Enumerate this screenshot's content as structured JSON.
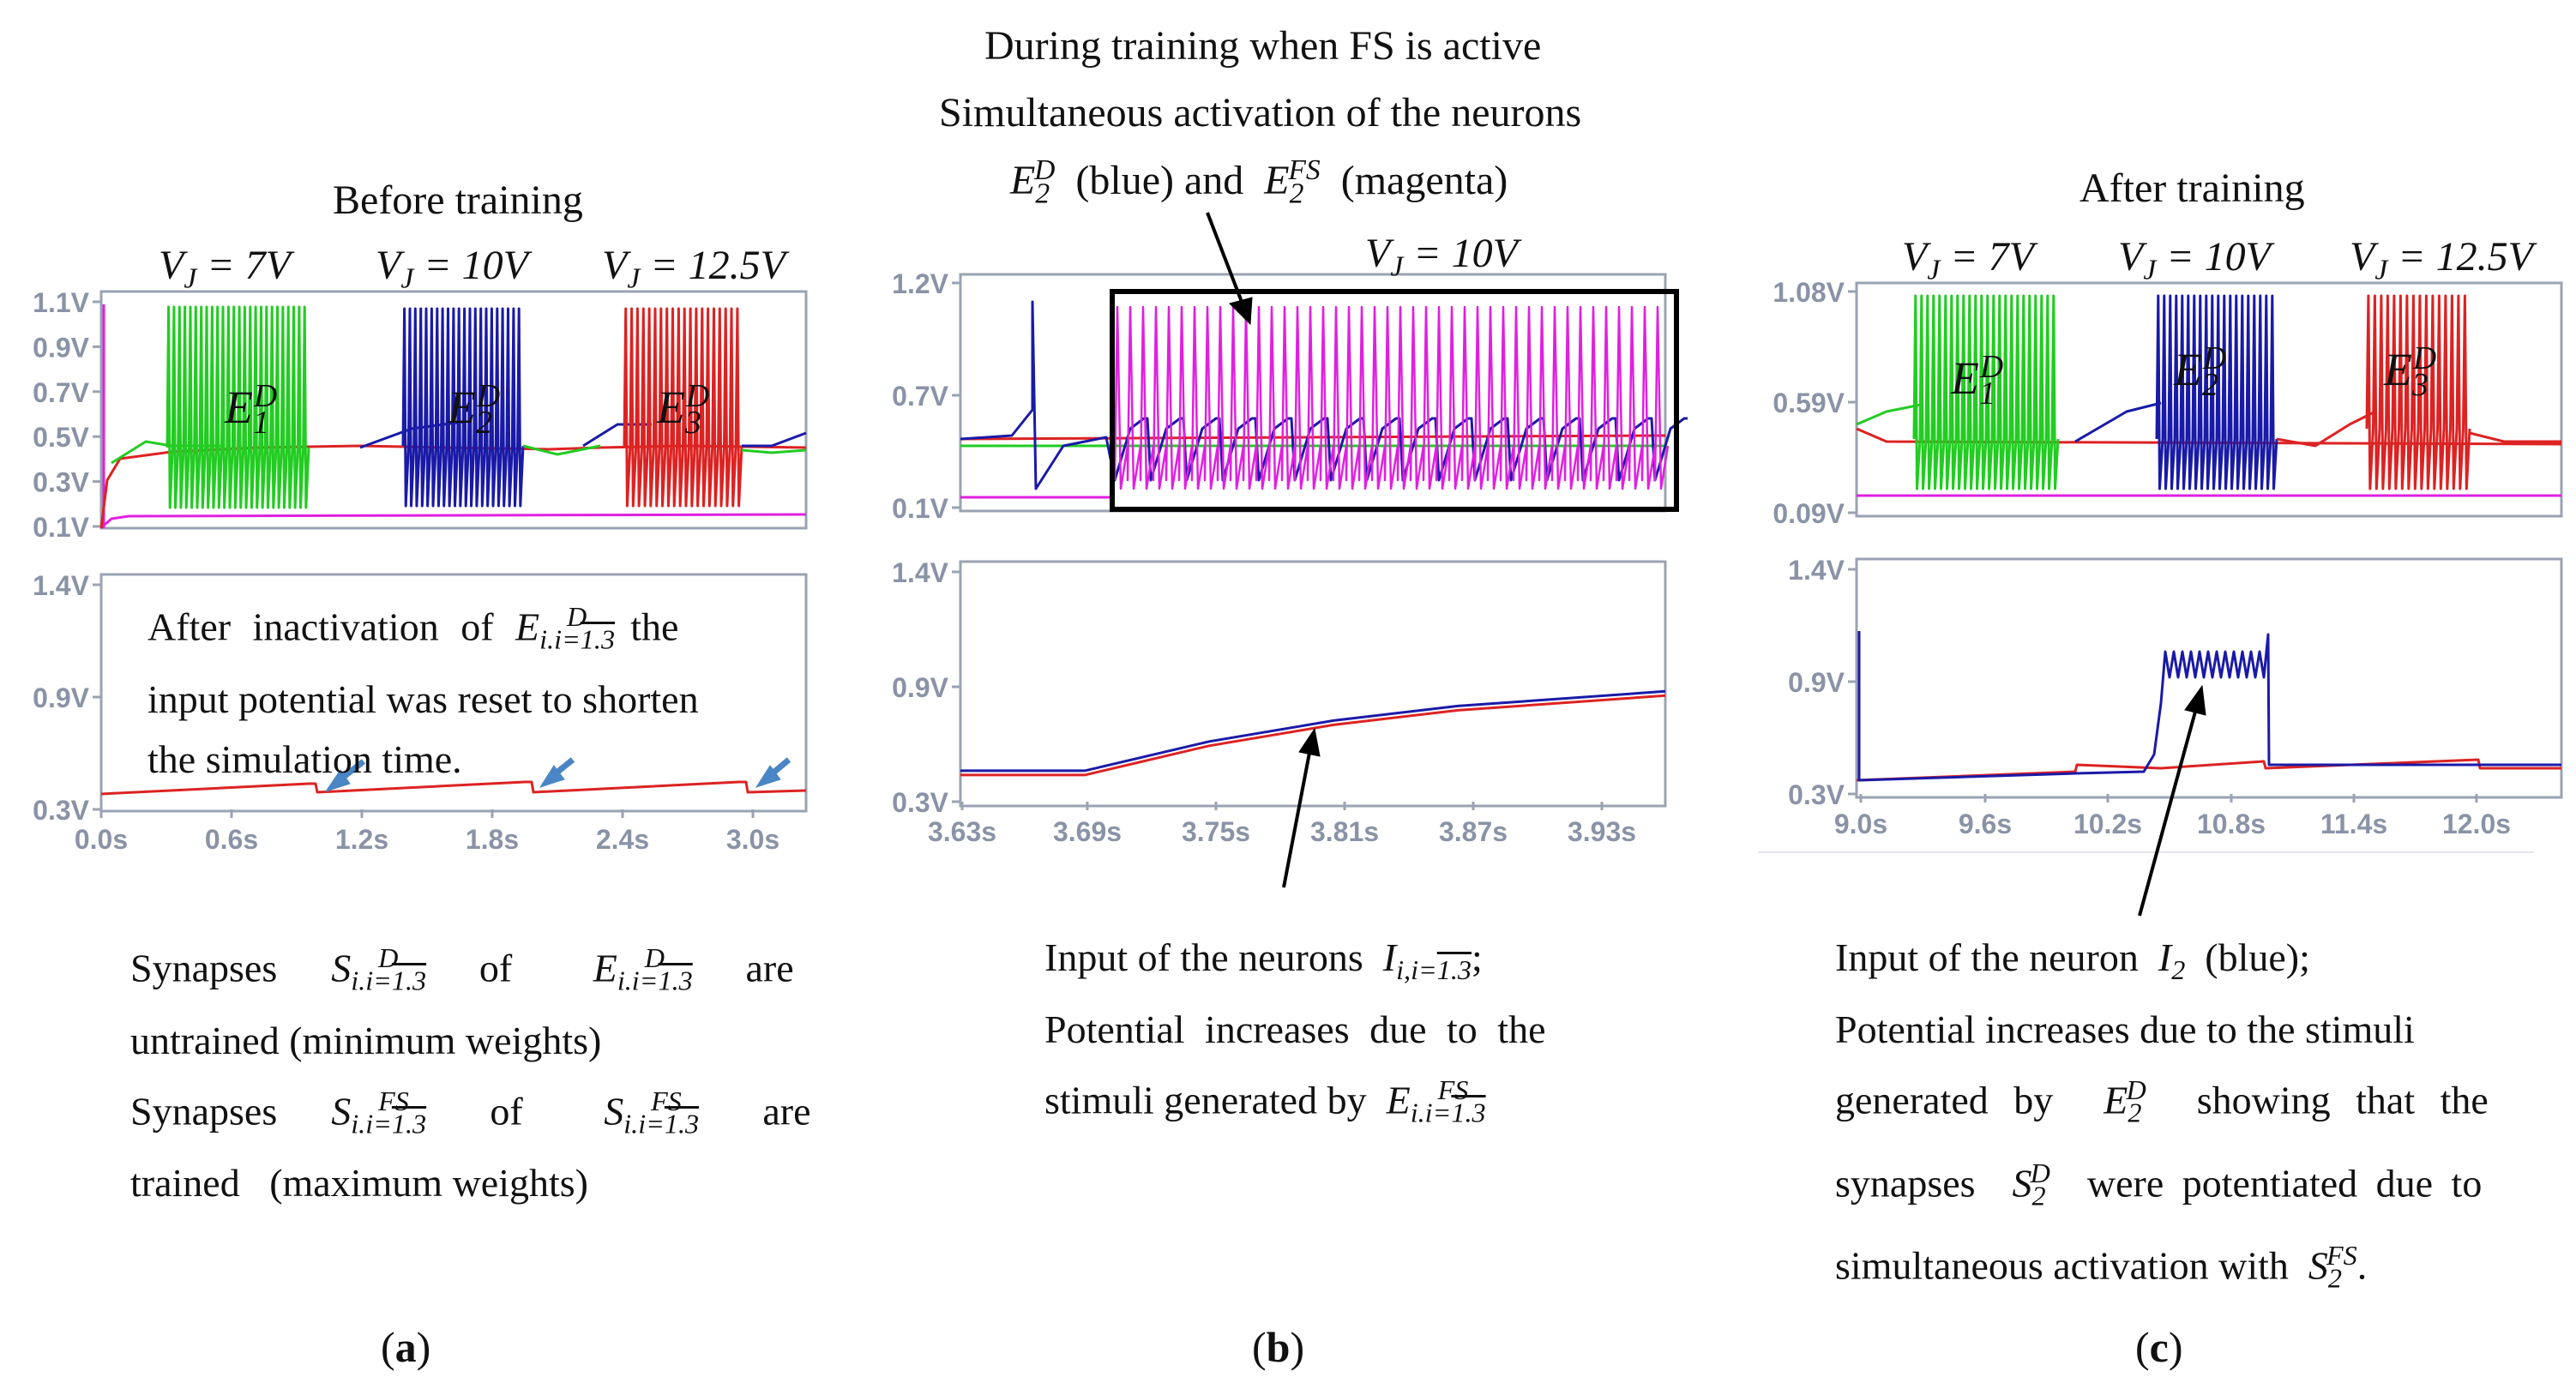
{
  "panels": {
    "a": {
      "label_open": "(",
      "label_letter": "a",
      "label_close": ")",
      "title": "Before training",
      "vj_labels": [
        "V_J = 7V",
        "V_J = 10V",
        "V_J = 12.5V"
      ],
      "neuron_labels": [
        "E_1^D",
        "E_2^D",
        "E_3^D"
      ],
      "annotation_lines": [
        "After inactivation of E^D_{i.i=1.3} the",
        "input potential was reset to shorten",
        "the simulation time."
      ],
      "caption_lines": [
        "Synapses S^D_{i.i=1.3} of E^D_{i.i=1.3} are",
        "untrained (minimum weights)",
        "Synapses S^FS_{i.i=1.3} of S^FS_{i.i=1.3} are",
        "trained (maximum weights)"
      ]
    },
    "b": {
      "label_open": "(",
      "label_letter": "b",
      "label_close": ")",
      "title_lines": [
        "During training when FS is active",
        "Simultaneous activation of the neurons",
        "E_2^D (blue) and E_2^FS (magenta)"
      ],
      "vj_label": "V_J = 10V",
      "caption_lines": [
        "Input of the neurons I_{i,i=1.3};",
        "Potential increases due to the",
        "stimuli generated by E^FS_{i.i=1.3}"
      ]
    },
    "c": {
      "label_open": "(",
      "label_letter": "c",
      "label_close": ")",
      "title": "After training",
      "vj_labels": [
        "V_J = 7V",
        "V_J = 10V",
        "V_J = 12.5V"
      ],
      "neuron_labels": [
        "E_1^D",
        "E_2^D",
        "E_3^D"
      ],
      "caption_lines": [
        "Input of the neuron I_2 (blue);",
        "Potential increases due to the stimuli",
        "generated by E_2^D showing that the",
        "synapses S_2^D were potentiated due to",
        "simultaneous activation with S_2^FS."
      ]
    }
  },
  "colors": {
    "green": "#22cc22",
    "blue": "#1a1aa8",
    "red": "#dd2222",
    "magenta": "#e020e0",
    "axis": "#9aa3b2",
    "tick_text": "#8a93a6",
    "arrow_blue": "#4a86c5",
    "frame": "#000000"
  },
  "chart_data": [
    {
      "id": "a-top",
      "type": "line",
      "y_ticks": [
        "1.1V",
        "0.9V",
        "0.7V",
        "0.5V",
        "0.3V",
        "0.1V"
      ],
      "ylim": [
        0.1,
        1.1
      ],
      "series": [
        {
          "name": "E1D output (green)",
          "burst_window_s": [
            0.3,
            1.0
          ]
        },
        {
          "name": "E2D output (blue)",
          "burst_window_s": [
            1.5,
            2.0
          ]
        },
        {
          "name": "E3D output (red)",
          "burst_window_s": [
            2.5,
            3.0
          ]
        },
        {
          "name": "E_FS (magenta)",
          "level_v": 0.18
        }
      ]
    },
    {
      "id": "a-bottom",
      "type": "line",
      "x_ticks": [
        "0.0s",
        "0.6s",
        "1.2s",
        "1.8s",
        "2.4s",
        "3.0s"
      ],
      "y_ticks": [
        "1.4V",
        "0.9V",
        "0.3V"
      ],
      "xlim": [
        0.0,
        3.3
      ],
      "ylim": [
        0.3,
        1.4
      ],
      "reset_times_s": [
        1.05,
        2.05,
        3.05
      ]
    },
    {
      "id": "b-top",
      "type": "line",
      "y_ticks": [
        "1.2V",
        "0.7V",
        "0.1V"
      ],
      "ylim": [
        0.1,
        1.2
      ]
    },
    {
      "id": "b-bottom",
      "type": "line",
      "x_ticks": [
        "3.63s",
        "3.69s",
        "3.75s",
        "3.81s",
        "3.87s",
        "3.93s"
      ],
      "y_ticks": [
        "1.4V",
        "0.9V",
        "0.3V"
      ],
      "xlim": [
        3.63,
        3.97
      ],
      "ylim": [
        0.3,
        1.4
      ],
      "series": [
        {
          "name": "Input (red/blue)",
          "x": [
            3.63,
            3.69,
            3.75,
            3.81,
            3.87,
            3.97
          ],
          "y": [
            0.44,
            0.44,
            0.58,
            0.68,
            0.75,
            0.82
          ]
        }
      ]
    },
    {
      "id": "c-top",
      "type": "line",
      "y_ticks": [
        "1.08V",
        "0.59V",
        "0.09V"
      ],
      "ylim": [
        0.09,
        1.08
      ]
    },
    {
      "id": "c-bottom",
      "type": "line",
      "x_ticks": [
        "9.0s",
        "9.6s",
        "10.2s",
        "10.8s",
        "11.4s",
        "12.0s"
      ],
      "y_ticks": [
        "1.4V",
        "0.9V",
        "0.3V"
      ],
      "xlim": [
        9.0,
        12.3
      ],
      "ylim": [
        0.3,
        1.4
      ],
      "series": [
        {
          "name": "I2 (blue)",
          "peak_window_s": [
            10.45,
            11.0
          ],
          "peak_v": 1.15
        }
      ]
    }
  ]
}
